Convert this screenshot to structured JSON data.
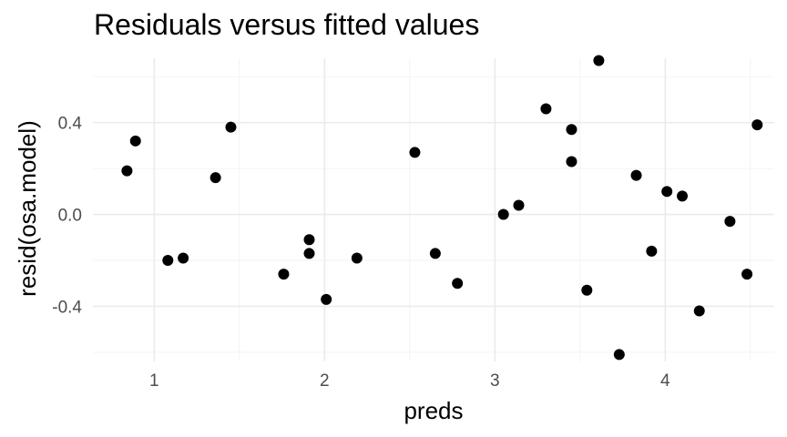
{
  "chart_data": {
    "type": "scatter",
    "title": "Residuals versus fitted values",
    "xlabel": "preds",
    "ylabel": "resid(osa.model)",
    "xlim": [
      0.64,
      4.64
    ],
    "ylim": [
      -0.64,
      0.68
    ],
    "x_ticks": [
      1,
      2,
      3,
      4
    ],
    "x_tick_labels": [
      "1",
      "2",
      "3",
      "4"
    ],
    "y_ticks": [
      -0.4,
      0.0,
      0.4
    ],
    "y_tick_labels": [
      "-0.4",
      "0.0",
      "0.4"
    ],
    "x_minor": [
      1.5,
      2.5,
      3.5,
      4.5
    ],
    "y_minor": [
      -0.6,
      -0.2,
      0.2,
      0.6
    ],
    "grid": true,
    "legend": "none",
    "point_color": "#000000",
    "points": [
      {
        "x": 0.84,
        "y": 0.19
      },
      {
        "x": 0.89,
        "y": 0.32
      },
      {
        "x": 1.08,
        "y": -0.2
      },
      {
        "x": 1.17,
        "y": -0.19
      },
      {
        "x": 1.36,
        "y": 0.16
      },
      {
        "x": 1.45,
        "y": 0.38
      },
      {
        "x": 1.76,
        "y": -0.26
      },
      {
        "x": 1.91,
        "y": -0.11
      },
      {
        "x": 1.91,
        "y": -0.17
      },
      {
        "x": 2.01,
        "y": -0.37
      },
      {
        "x": 2.19,
        "y": -0.19
      },
      {
        "x": 2.53,
        "y": 0.27
      },
      {
        "x": 2.65,
        "y": -0.17
      },
      {
        "x": 2.78,
        "y": -0.3
      },
      {
        "x": 3.05,
        "y": 0.0
      },
      {
        "x": 3.14,
        "y": 0.04
      },
      {
        "x": 3.3,
        "y": 0.46
      },
      {
        "x": 3.45,
        "y": 0.37
      },
      {
        "x": 3.45,
        "y": 0.23
      },
      {
        "x": 3.54,
        "y": -0.33
      },
      {
        "x": 3.61,
        "y": 0.67
      },
      {
        "x": 3.73,
        "y": -0.61
      },
      {
        "x": 3.83,
        "y": 0.17
      },
      {
        "x": 3.92,
        "y": -0.16
      },
      {
        "x": 4.01,
        "y": 0.1
      },
      {
        "x": 4.1,
        "y": 0.08
      },
      {
        "x": 4.2,
        "y": -0.42
      },
      {
        "x": 4.38,
        "y": -0.03
      },
      {
        "x": 4.48,
        "y": -0.26
      },
      {
        "x": 4.54,
        "y": 0.39
      }
    ]
  }
}
